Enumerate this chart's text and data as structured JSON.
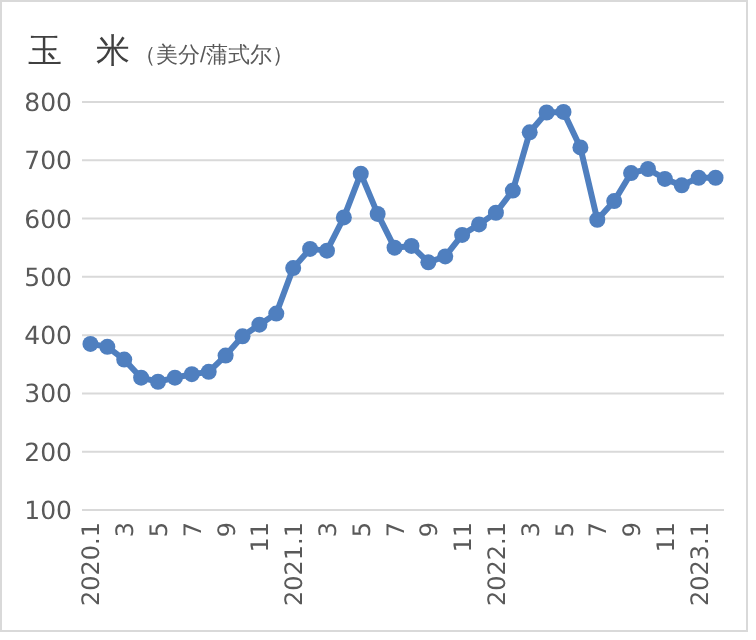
{
  "chart_data": {
    "type": "line",
    "title": "玉　米",
    "subtitle": "（美分/蒲式尔）",
    "categories": [
      "2020.1",
      null,
      "3",
      null,
      "5",
      null,
      "7",
      null,
      "9",
      null,
      "11",
      null,
      "2021.1",
      null,
      "3",
      null,
      "5",
      null,
      "7",
      null,
      "9",
      null,
      "11",
      null,
      "2022.1",
      null,
      "3",
      null,
      "5",
      null,
      "7",
      null,
      "9",
      null,
      "11",
      null,
      "2023.1",
      null
    ],
    "series": [
      {
        "color": "#4f7fbf",
        "values": [
          385,
          380,
          358,
          327,
          320,
          327,
          333,
          337,
          365,
          398,
          418,
          437,
          515,
          548,
          545,
          602,
          677,
          608,
          550,
          553,
          525,
          535,
          572,
          590,
          610,
          648,
          748,
          782,
          783,
          722,
          598,
          630,
          678,
          685,
          668,
          657,
          670,
          670
        ]
      }
    ],
    "ylim": [
      100,
      800
    ],
    "yticks": [
      100,
      200,
      300,
      400,
      500,
      600,
      700,
      800
    ],
    "grid": "y",
    "marker": "circle",
    "line_style": "solid"
  }
}
